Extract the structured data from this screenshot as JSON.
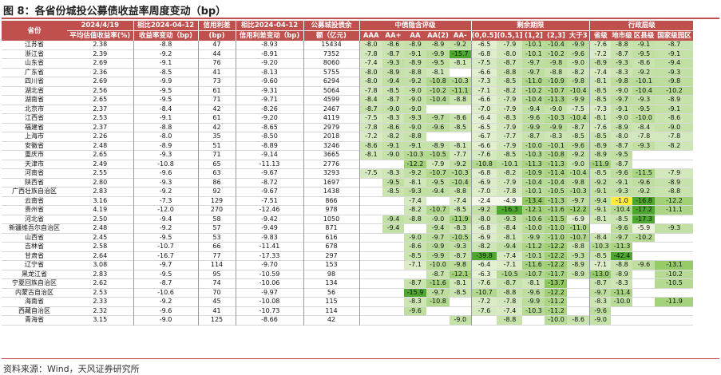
{
  "title": "图 8：各省份城投公募债收益率周度变动（bp）",
  "source": "资料来源：Wind，天风证券研究所",
  "header": {
    "province": "省份",
    "date_top": "2024/4/19",
    "date_bottom": "平均估值收益率(%)",
    "chg_top": "相比2024-04-12",
    "chg_bottom": "收益率变动（bp)",
    "spread_top": "信用利差",
    "spread_bottom": "(bp)",
    "spread_chg_top": "相比2024-04-12",
    "spread_chg_bottom": "信用利差变动（bp)",
    "balance_top": "公募城投债余",
    "balance_bottom": "额（亿元)",
    "group_rating": "中债隐含评级",
    "group_maturity": "剩余期限",
    "group_admin": "行政层级",
    "rating_cols": [
      "AAA",
      "AA+",
      "AA",
      "AA(2)",
      "AA-"
    ],
    "maturity_cols": [
      "(0,0.5]",
      "(0.5,1]",
      "(1,2]",
      "(2,3]",
      "大于3"
    ],
    "admin_cols": [
      "省级",
      "地市级",
      "区县级",
      "国家级园区"
    ]
  },
  "rows": [
    {
      "p": "江苏省",
      "y": "2.38",
      "c": "-8.8",
      "s": "47",
      "sc": "-8.93",
      "b": "15434",
      "r": [
        "-8.0",
        "-8.6",
        "-8.9",
        "-8.9",
        "-9.2"
      ],
      "m": [
        "-6.5",
        "-7.9",
        "-10.1",
        "-10.4",
        "-9.9"
      ],
      "a": [
        "-7.6",
        "-8.8",
        "-9.1",
        "-8.7"
      ]
    },
    {
      "p": "浙江省",
      "y": "2.39",
      "c": "-9.2",
      "s": "44",
      "sc": "-8.91",
      "b": "7352",
      "r": [
        "-7.8",
        "-8.7",
        "-9.1",
        "-9.9",
        "-15.7"
      ],
      "m": [
        "-6.8",
        "-8.0",
        "-10.1",
        "-10.2",
        "-9.6"
      ],
      "a": [
        "-7.2",
        "-8.7",
        "-9.5",
        "-9.1"
      ]
    },
    {
      "p": "山东省",
      "y": "2.69",
      "c": "-9.1",
      "s": "76",
      "sc": "-9.20",
      "b": "8060",
      "r": [
        "-7.4",
        "-9.3",
        "-8.9",
        "-9.5",
        "-8.1"
      ],
      "m": [
        "-7.5",
        "-8.7",
        "-9.7",
        "-9.8",
        "-9.0"
      ],
      "a": [
        "-8.9",
        "-9.3",
        "-8.6",
        "-9.4"
      ]
    },
    {
      "p": "广东省",
      "y": "2.36",
      "c": "-8.5",
      "s": "41",
      "sc": "-8.13",
      "b": "5755",
      "r": [
        "-8.0",
        "-8.9",
        "-8.8",
        "-8.1",
        ""
      ],
      "m": [
        "-6.6",
        "-8.8",
        "-9.7",
        "-8.8",
        "-8.2"
      ],
      "a": [
        "-7.4",
        "-8.3",
        "-9.2",
        "-9.3"
      ]
    },
    {
      "p": "四川省",
      "y": "2.69",
      "c": "-9.9",
      "s": "73",
      "sc": "-9.60",
      "b": "6294",
      "r": [
        "-8.0",
        "-9.4",
        "-9.2",
        "-10.8",
        "-10.3"
      ],
      "m": [
        "-7.3",
        "-8.5",
        "-11.0",
        "-10.9",
        "-9.8"
      ],
      "a": [
        "-8.1",
        "-9.8",
        "-10.1",
        "-9.8"
      ]
    },
    {
      "p": "湖北省",
      "y": "2.56",
      "c": "-9.5",
      "s": "61",
      "sc": "-9.31",
      "b": "5064",
      "r": [
        "-7.8",
        "-8.5",
        "-9.0",
        "-10.2",
        "-11.1"
      ],
      "m": [
        "-7.1",
        "-8.2",
        "-10.2",
        "-10.7",
        "-10.4"
      ],
      "a": [
        "-8.5",
        "-9.0",
        "-10.4",
        "-10.2"
      ]
    },
    {
      "p": "湖南省",
      "y": "2.65",
      "c": "-9.5",
      "s": "71",
      "sc": "-9.71",
      "b": "4599",
      "r": [
        "-8.4",
        "-8.7",
        "-9.0",
        "-10.4",
        "-8.8"
      ],
      "m": [
        "-6.6",
        "-7.9",
        "-10.4",
        "-11.3",
        "-9.9"
      ],
      "a": [
        "-8.5",
        "-9.7",
        "-9.3",
        "-8.9"
      ]
    },
    {
      "p": "北京市",
      "y": "2.37",
      "c": "-8.4",
      "s": "42",
      "sc": "-8.26",
      "b": "2467",
      "r": [
        "-8.7",
        "-9.0",
        "-9.0",
        "",
        ""
      ],
      "m": [
        "-7.0",
        "-7.9",
        "-9.4",
        "-9.0",
        "-7.5"
      ],
      "a": [
        "-7.3",
        "-9.1",
        "-9.5",
        "-9.1"
      ]
    },
    {
      "p": "江西省",
      "y": "2.53",
      "c": "-9.1",
      "s": "61",
      "sc": "-9.20",
      "b": "4119",
      "r": [
        "-7.5",
        "-8.3",
        "-9.3",
        "-9.7",
        "-8.6"
      ],
      "m": [
        "-6.4",
        "-8.3",
        "-9.6",
        "-10.3",
        "-10.4"
      ],
      "a": [
        "-8.1",
        "-9.0",
        "-10.0",
        "-8.6"
      ]
    },
    {
      "p": "福建省",
      "y": "2.37",
      "c": "-8.8",
      "s": "42",
      "sc": "-8.65",
      "b": "2979",
      "r": [
        "-7.8",
        "-8.6",
        "-9.0",
        "-9.6",
        "-8.5"
      ],
      "m": [
        "-6.5",
        "-7.9",
        "-9.9",
        "-9.9",
        "-8.7"
      ],
      "a": [
        "-7.6",
        "-8.9",
        "-8.4",
        "-9.0"
      ]
    },
    {
      "p": "上海市",
      "y": "2.26",
      "c": "-8.0",
      "s": "35",
      "sc": "-8.50",
      "b": "2018",
      "r": [
        "-7.2",
        "-8.2",
        "-8.8",
        "",
        ""
      ],
      "m": [
        "-6.7",
        "-7.7",
        "-8.7",
        "-8.3",
        "-8.5"
      ],
      "a": [
        "-8.5",
        "-8.0",
        "-7.8",
        "-7.8"
      ]
    },
    {
      "p": "安徽省",
      "y": "2.48",
      "c": "-8.9",
      "s": "51",
      "sc": "-8.89",
      "b": "3246",
      "r": [
        "-8.6",
        "-9.1",
        "-9.1",
        "-8.9",
        "-8.1"
      ],
      "m": [
        "-6.6",
        "-7.9",
        "-10.0",
        "-10.1",
        "-9.6"
      ],
      "a": [
        "-8.9",
        "-8.7",
        "-9.3",
        "-8.2"
      ]
    },
    {
      "p": "重庆市",
      "y": "2.65",
      "c": "-9.3",
      "s": "71",
      "sc": "-9.14",
      "b": "3665",
      "r": [
        "-8.1",
        "-9.0",
        "-10.3",
        "-10.5",
        "-7.7"
      ],
      "m": [
        "-7.6",
        "-8.5",
        "-10.3",
        "-10.8",
        "-9.2"
      ],
      "a": [
        "-8.9",
        "-9.5",
        "",
        ""
      ]
    },
    {
      "p": "天津市",
      "y": "2.49",
      "c": "-10.8",
      "s": "65",
      "sc": "-11.13",
      "b": "2776",
      "r": [
        "",
        "",
        "-12.2",
        "-7.9",
        "-9.2"
      ],
      "m": [
        "-10.8",
        "-10.1",
        "-11.3",
        "-11.3",
        "-9.0"
      ],
      "a": [
        "-11.9",
        "-8.7",
        "",
        ""
      ]
    },
    {
      "p": "河南省",
      "y": "2.55",
      "c": "-9.6",
      "s": "63",
      "sc": "-9.67",
      "b": "3293",
      "r": [
        "-7.5",
        "-8.3",
        "-9.2",
        "-10.7",
        "-10.3"
      ],
      "m": [
        "-6.8",
        "-8.2",
        "-10.9",
        "-11.4",
        "-10.4"
      ],
      "a": [
        "-8.5",
        "-9.6",
        "-11.5",
        "-7.9"
      ]
    },
    {
      "p": "陕西省",
      "y": "2.80",
      "c": "-9.3",
      "s": "86",
      "sc": "-8.72",
      "b": "1697",
      "r": [
        "",
        "-9.5",
        "-8.1",
        "-9.5",
        "-10.4"
      ],
      "m": [
        "-6.9",
        "-7.9",
        "-10.4",
        "-10.4",
        "-9.8"
      ],
      "a": [
        "-9.2",
        "-9.1",
        "-9.6",
        "-8.9"
      ]
    },
    {
      "p": "广西壮族自治区",
      "y": "2.83",
      "c": "-9.2",
      "s": "92",
      "sc": "-9.67",
      "b": "1438",
      "r": [
        "",
        "-8.5",
        "-9.3",
        "-9.4",
        "-8.8"
      ],
      "m": [
        "-7.0",
        "-7.8",
        "-10.1",
        "-10.5",
        "-10.3"
      ],
      "a": [
        "-9.1",
        "-9.3",
        "-9.2",
        "-8.8"
      ]
    },
    {
      "p": "云南省",
      "y": "3.16",
      "c": "-7.3",
      "s": "129",
      "sc": "-7.51",
      "b": "866",
      "r": [
        "",
        "",
        "-7.4",
        "",
        "-7.4"
      ],
      "m": [
        "-2.4",
        "-4.9",
        "-13.4",
        "-11.3",
        "-9.7"
      ],
      "a": [
        "-9.4",
        "-1.0",
        "-16.8",
        "-12.2"
      ]
    },
    {
      "p": "贵州省",
      "y": "4.19",
      "c": "-12.0",
      "s": "270",
      "sc": "-12.46",
      "b": "978",
      "r": [
        "",
        "",
        "-8.2",
        "-10.7",
        "-8.5"
      ],
      "m": [
        "-9.2",
        "-16.3",
        "-12.1",
        "-11.6",
        "-12.2"
      ],
      "a": [
        "-9.1",
        "-10.4",
        "-17.2",
        "-11.1"
      ]
    },
    {
      "p": "河北省",
      "y": "2.50",
      "c": "-9.4",
      "s": "58",
      "sc": "-9.42",
      "b": "1050",
      "r": [
        "",
        "-9.4",
        "-8.8",
        "-9.0",
        "-11.9"
      ],
      "m": [
        "-8.0",
        "-9.3",
        "-10.6",
        "-11.5",
        "-6.9"
      ],
      "a": [
        "-8.1",
        "-8.5",
        "-17.3",
        ""
      ]
    },
    {
      "p": "新疆维吾尔自治区",
      "y": "2.48",
      "c": "-9.2",
      "s": "57",
      "sc": "-9.49",
      "b": "871",
      "r": [
        "",
        "-9.4",
        "",
        "-9.4",
        "-8.3"
      ],
      "m": [
        "-6.8",
        "-8.4",
        "-10.0",
        "-11.0",
        "-11.0"
      ],
      "a": [
        "",
        "-9.6",
        "-5.9",
        "-9.3"
      ]
    },
    {
      "p": "山西省",
      "y": "2.45",
      "c": "-9.5",
      "s": "53",
      "sc": "-9.83",
      "b": "616",
      "r": [
        "",
        "",
        "-9.0",
        "-9.7",
        "-10.5"
      ],
      "m": [
        "-6.9",
        "-8.1",
        "-9.9",
        "-11.0",
        "-10.7"
      ],
      "a": [
        "-8.4",
        "-9.7",
        "-10.2",
        ""
      ]
    },
    {
      "p": "吉林省",
      "y": "2.58",
      "c": "-10.7",
      "s": "66",
      "sc": "-11.41",
      "b": "678",
      "r": [
        "",
        "",
        "-8.6",
        "-9.9",
        "-9.3"
      ],
      "m": [
        "-8.2",
        "-9.4",
        "-11.2",
        "-12.2",
        "-8.8"
      ],
      "a": [
        "-10.3",
        "-11.3",
        "",
        ""
      ]
    },
    {
      "p": "甘肃省",
      "y": "2.64",
      "c": "-16.7",
      "s": "77",
      "sc": "-17.33",
      "b": "297",
      "r": [
        "",
        "",
        "-8.5",
        "-9.9",
        "-8.7"
      ],
      "m": [
        "-39.8",
        "-7.4",
        "-10.1",
        "-12.2",
        "-9.3"
      ],
      "a": [
        "-8.5",
        "-42.4",
        "",
        ""
      ]
    },
    {
      "p": "辽宁省",
      "y": "3.08",
      "c": "-9.7",
      "s": "114",
      "sc": "-9.70",
      "b": "153",
      "r": [
        "",
        "",
        "-7.1",
        "-10.0",
        "-9.8"
      ],
      "m": [
        "-6.4",
        "-7.1",
        "-11.6",
        "-12.2",
        "-8.9"
      ],
      "a": [
        "-7.1",
        "-8.8",
        "-9.6",
        "-13.1"
      ]
    },
    {
      "p": "黑龙江省",
      "y": "2.83",
      "c": "-9.5",
      "s": "95",
      "sc": "-10.59",
      "b": "98",
      "r": [
        "",
        "",
        "",
        "-8.7",
        "-12.1"
      ],
      "m": [
        "-6.3",
        "-10.5",
        "-10.7",
        "-11.7",
        "-8.9"
      ],
      "a": [
        "-13.0",
        "-8.9",
        "",
        "-10.2"
      ]
    },
    {
      "p": "宁夏回族自治区",
      "y": "2.62",
      "c": "-8.7",
      "s": "74",
      "sc": "-10.06",
      "b": "134",
      "r": [
        "",
        "",
        "-8.7",
        "-11.6",
        "-8.1"
      ],
      "m": [
        "-7.6",
        "-8.7",
        "-8.1",
        "-13.7",
        ""
      ],
      "a": [
        "-8.7",
        "-8.3",
        "",
        "-10.5"
      ]
    },
    {
      "p": "内蒙古自治区",
      "y": "2.53",
      "c": "-10.6",
      "s": "70",
      "sc": "-9.97",
      "b": "56",
      "r": [
        "",
        "",
        "-15.9",
        "-9.7",
        "-8.5"
      ],
      "m": [
        "-10.7",
        "-8.8",
        "-9.6",
        "-12.2",
        ""
      ],
      "a": [
        "-9.7",
        "-11.4",
        "",
        ""
      ]
    },
    {
      "p": "海南省",
      "y": "2.33",
      "c": "-9.2",
      "s": "45",
      "sc": "-10.08",
      "b": "115",
      "r": [
        "",
        "",
        "-8.3",
        "-10.8",
        ""
      ],
      "m": [
        "-7.2",
        "-7.8",
        "-9.9",
        "-11.2",
        ""
      ],
      "a": [
        "-8.3",
        "-10.0",
        "",
        "-11.9"
      ]
    },
    {
      "p": "西藏自治区",
      "y": "2.32",
      "c": "-9.6",
      "s": "41",
      "sc": "-10.73",
      "b": "114",
      "r": [
        "",
        "",
        "-9.6",
        "",
        ""
      ],
      "m": [
        "-7.6",
        "-7.4",
        "-10.3",
        "-11.2",
        ""
      ],
      "a": [
        "-9.6",
        "",
        "",
        ""
      ]
    },
    {
      "p": "青海省",
      "y": "3.15",
      "c": "-9.0",
      "s": "125",
      "sc": "-8.66",
      "b": "42",
      "r": [
        "",
        "",
        "",
        "",
        "-9.0"
      ],
      "m": [
        "",
        "-8.8",
        "",
        "-10.0",
        "-8.6"
      ],
      "a": [
        "-9.0",
        "",
        "",
        ""
      ]
    }
  ],
  "colors": {
    "accent": "#c0504d",
    "deep_green": "#4ea72e",
    "light_green": "#e2efc8",
    "yellow": "#ffeb3b"
  }
}
